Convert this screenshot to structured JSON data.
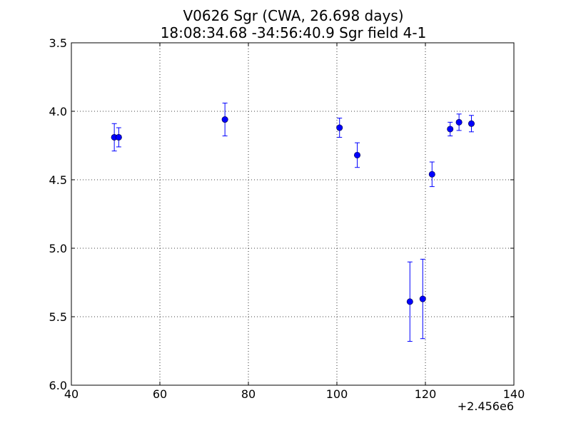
{
  "chart_data": {
    "type": "scatter",
    "title": "V0626 Sgr (CWA, 26.698 days)",
    "subtitle": "18:08:34.68 -34:56:40.9 Sgr field 4-1",
    "xlabel": "",
    "ylabel": "",
    "x_offset_label": "+2.456e6",
    "xlim": [
      40,
      140
    ],
    "ylim": [
      6.0,
      3.5
    ],
    "y_inverted": true,
    "grid": true,
    "x_ticks": [
      "40",
      "60",
      "80",
      "100",
      "120",
      "140"
    ],
    "y_ticks": [
      "3.5",
      "4.0",
      "4.5",
      "5.0",
      "5.5",
      "6.0"
    ],
    "point_color": "#0000ff",
    "errorbar_color": "#0000ff",
    "points": [
      {
        "x": 49.7,
        "y": 4.19,
        "yerr": 0.1
      },
      {
        "x": 50.7,
        "y": 4.19,
        "yerr": 0.07
      },
      {
        "x": 74.7,
        "y": 4.06,
        "yerr": 0.12
      },
      {
        "x": 100.6,
        "y": 4.12,
        "yerr": 0.07
      },
      {
        "x": 104.6,
        "y": 4.32,
        "yerr": 0.09
      },
      {
        "x": 116.5,
        "y": 5.39,
        "yerr": 0.29
      },
      {
        "x": 119.4,
        "y": 5.37,
        "yerr": 0.29
      },
      {
        "x": 121.5,
        "y": 4.46,
        "yerr": 0.09
      },
      {
        "x": 125.6,
        "y": 4.13,
        "yerr": 0.05
      },
      {
        "x": 127.6,
        "y": 4.08,
        "yerr": 0.06
      },
      {
        "x": 130.4,
        "y": 4.09,
        "yerr": 0.06
      }
    ]
  }
}
